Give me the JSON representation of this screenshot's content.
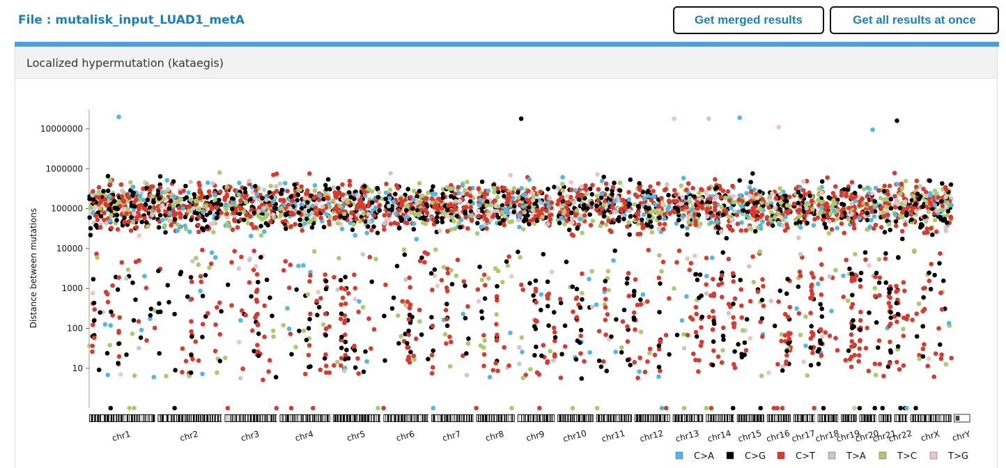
{
  "file": {
    "label": "File : mutalisk_input_LUAD1_metA"
  },
  "buttons": {
    "merged": "Get merged results",
    "all": "Get all results at once"
  },
  "panel": {
    "title": "Localized hypermutation (kataegis)"
  },
  "colors": {
    "C>A": "#4fb8e6",
    "C>G": "#000000",
    "C>T": "#d93a2b",
    "T>A": "#c8c8c8",
    "T>C": "#a8cc6b",
    "T>G": "#eec4c4",
    "accent": "#4a9ee6",
    "title": "#1a7fc1"
  },
  "chart_data": {
    "type": "scatter",
    "ylabel": "Distance between mutations",
    "yscale": "log",
    "ylim": [
      1,
      30000000
    ],
    "yticks": [
      "10000000",
      "1000000",
      "100000",
      "10000",
      "1000",
      "100",
      "10"
    ],
    "legend_position": "bottom-right",
    "legend": [
      "C>A",
      "C>G",
      "C>T",
      "T>A",
      "T>C",
      "T>G"
    ],
    "chromosomes": [
      {
        "name": "chr1",
        "weight": 249
      },
      {
        "name": "chr2",
        "weight": 243
      },
      {
        "name": "chr3",
        "weight": 198
      },
      {
        "name": "chr4",
        "weight": 191
      },
      {
        "name": "chr5",
        "weight": 181
      },
      {
        "name": "chr6",
        "weight": 171
      },
      {
        "name": "chr7",
        "weight": 159
      },
      {
        "name": "chr8",
        "weight": 146
      },
      {
        "name": "chr9",
        "weight": 141
      },
      {
        "name": "chr10",
        "weight": 136
      },
      {
        "name": "chr11",
        "weight": 135
      },
      {
        "name": "chr12",
        "weight": 134
      },
      {
        "name": "chr13",
        "weight": 115
      },
      {
        "name": "chr14",
        "weight": 107
      },
      {
        "name": "chr15",
        "weight": 103
      },
      {
        "name": "chr16",
        "weight": 90
      },
      {
        "name": "chr17",
        "weight": 81
      },
      {
        "name": "chr18",
        "weight": 78
      },
      {
        "name": "chr19",
        "weight": 59
      },
      {
        "name": "chr20",
        "weight": 63
      },
      {
        "name": "chr21",
        "weight": 48
      },
      {
        "name": "chr22",
        "weight": 51
      },
      {
        "name": "chrX",
        "weight": 155
      },
      {
        "name": "chrY",
        "weight": 59
      }
    ],
    "highlight_points": [
      {
        "chrom": "chr1",
        "pos": 0.45,
        "y": 20000000,
        "type": "C>A"
      },
      {
        "chrom": "chr9",
        "pos": 0.1,
        "y": 18000000,
        "type": "C>G"
      },
      {
        "chrom": "chr13",
        "pos": 0.05,
        "y": 18000000,
        "type": "T>G"
      },
      {
        "chrom": "chr14",
        "pos": 0.1,
        "y": 18000000,
        "type": "T>A"
      },
      {
        "chrom": "chr15",
        "pos": 0.1,
        "y": 19000000,
        "type": "C>A"
      },
      {
        "chrom": "chr16",
        "pos": 0.5,
        "y": 11000000,
        "type": "T>G"
      },
      {
        "chrom": "chr20",
        "pos": 0.8,
        "y": 9500000,
        "type": "C>A"
      },
      {
        "chrom": "chr22",
        "pos": 0.2,
        "y": 16000000,
        "type": "C>G"
      }
    ]
  }
}
